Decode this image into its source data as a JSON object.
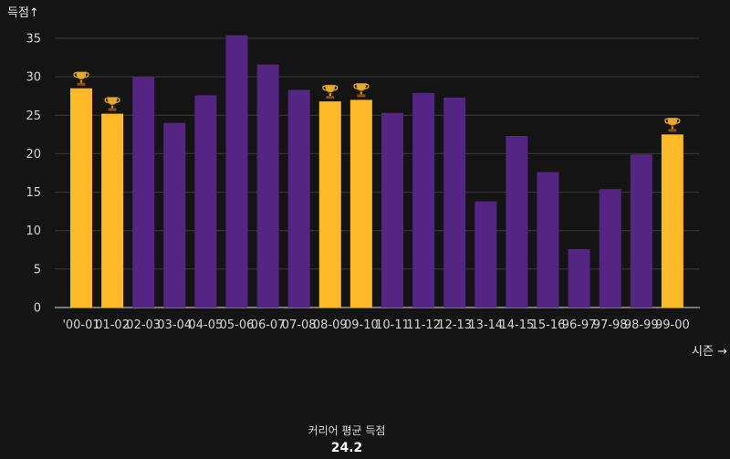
{
  "chart_data": {
    "type": "bar",
    "ylabel": "득점↑",
    "xlabel": "시즌 →",
    "ylim": [
      0,
      37
    ],
    "yticks": [
      0,
      5,
      10,
      15,
      20,
      25,
      30,
      35
    ],
    "grid": true,
    "categories": [
      "'00-01",
      "01-02",
      "02-03",
      "03-04",
      "04-05",
      "05-06",
      "06-07",
      "07-08",
      "08-09",
      "09-10",
      "10-11",
      "11-12",
      "12-13",
      "13-14",
      "14-15",
      "15-16",
      "96-97",
      "97-98",
      "98-99",
      "99-00"
    ],
    "values": [
      28.5,
      25.2,
      30.0,
      24.0,
      27.6,
      35.4,
      31.6,
      28.3,
      26.8,
      27.0,
      25.3,
      27.9,
      27.3,
      13.8,
      22.3,
      17.6,
      7.6,
      15.4,
      19.9,
      22.5
    ],
    "championship": [
      true,
      true,
      false,
      false,
      false,
      false,
      false,
      false,
      true,
      true,
      false,
      false,
      false,
      false,
      false,
      false,
      false,
      false,
      false,
      true
    ],
    "colors": {
      "championship": "#FDB927",
      "regular": "#552583",
      "grid": "#3a3a3a",
      "axis": "#9a9a9a"
    },
    "marker_icon": "trophy-icon"
  },
  "footer": {
    "label": "커리어 평균 득점",
    "value": "24.2"
  }
}
